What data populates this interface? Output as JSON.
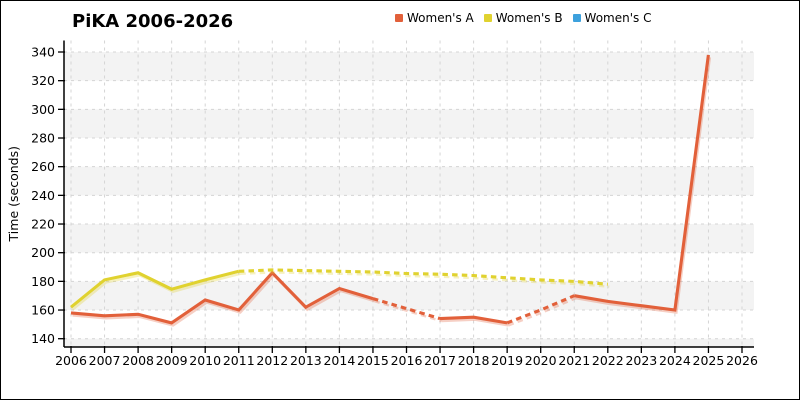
{
  "chart_data": {
    "type": "line",
    "title": "PiKA 2006-2026",
    "xlabel": "",
    "ylabel": "Time (seconds)",
    "x_ticks": [
      2006,
      2007,
      2008,
      2009,
      2010,
      2011,
      2012,
      2013,
      2014,
      2015,
      2016,
      2017,
      2018,
      2019,
      2020,
      2021,
      2022,
      2023,
      2024,
      2025,
      2026
    ],
    "y_ticks": [
      140,
      160,
      180,
      200,
      220,
      240,
      260,
      280,
      300,
      320,
      340
    ],
    "x_range": [
      2006,
      2026
    ],
    "y_tick_range": [
      140,
      340
    ],
    "grid": "dashed gridlines both axes; alternating light-gray horizontal bands",
    "legend_position": "top-center",
    "styles": {
      "band_color": "#f3f3f3",
      "grid_color": "#d4d4d4",
      "axis_color": "#000000",
      "text_color": "#000000"
    },
    "series": [
      {
        "name": "Women's A",
        "color": "#e2603a",
        "points": [
          [
            2006,
            158
          ],
          [
            2007,
            156
          ],
          [
            2008,
            157
          ],
          [
            2009,
            151
          ],
          [
            2010,
            167
          ],
          [
            2011,
            160
          ],
          [
            2012,
            186
          ],
          [
            2013,
            162
          ],
          [
            2014,
            175
          ],
          [
            2015,
            168
          ],
          [
            2016,
            161
          ],
          [
            2017,
            154
          ],
          [
            2018,
            155
          ],
          [
            2019,
            151
          ],
          [
            2020,
            160
          ],
          [
            2021,
            170
          ],
          [
            2022,
            166
          ],
          [
            2023,
            163
          ],
          [
            2024,
            160
          ],
          [
            2025,
            338
          ]
        ],
        "segments": [
          {
            "from": 2006,
            "to": 2015,
            "style": "solid"
          },
          {
            "from": 2015,
            "to": 2017,
            "style": "dashed"
          },
          {
            "from": 2017,
            "to": 2019,
            "style": "solid"
          },
          {
            "from": 2019,
            "to": 2021,
            "style": "dashed"
          },
          {
            "from": 2021,
            "to": 2025,
            "style": "solid"
          }
        ]
      },
      {
        "name": "Women's B",
        "color": "#e0d22f",
        "points": [
          [
            2006,
            162
          ],
          [
            2007,
            181
          ],
          [
            2008,
            186
          ],
          [
            2009,
            174.5
          ],
          [
            2010,
            181
          ],
          [
            2011,
            187
          ],
          [
            2012,
            188
          ],
          [
            2013,
            187.5
          ],
          [
            2014,
            187
          ],
          [
            2015,
            186.5
          ],
          [
            2016,
            185.5
          ],
          [
            2017,
            185
          ],
          [
            2018,
            184
          ],
          [
            2019,
            182.5
          ],
          [
            2020,
            181
          ],
          [
            2021,
            180
          ],
          [
            2022,
            178
          ]
        ],
        "segments": [
          {
            "from": 2006,
            "to": 2011,
            "style": "solid"
          },
          {
            "from": 2011,
            "to": 2022,
            "style": "dashed"
          }
        ]
      },
      {
        "name": "Women's C",
        "color": "#3da1dd",
        "points": [],
        "segments": []
      }
    ]
  }
}
